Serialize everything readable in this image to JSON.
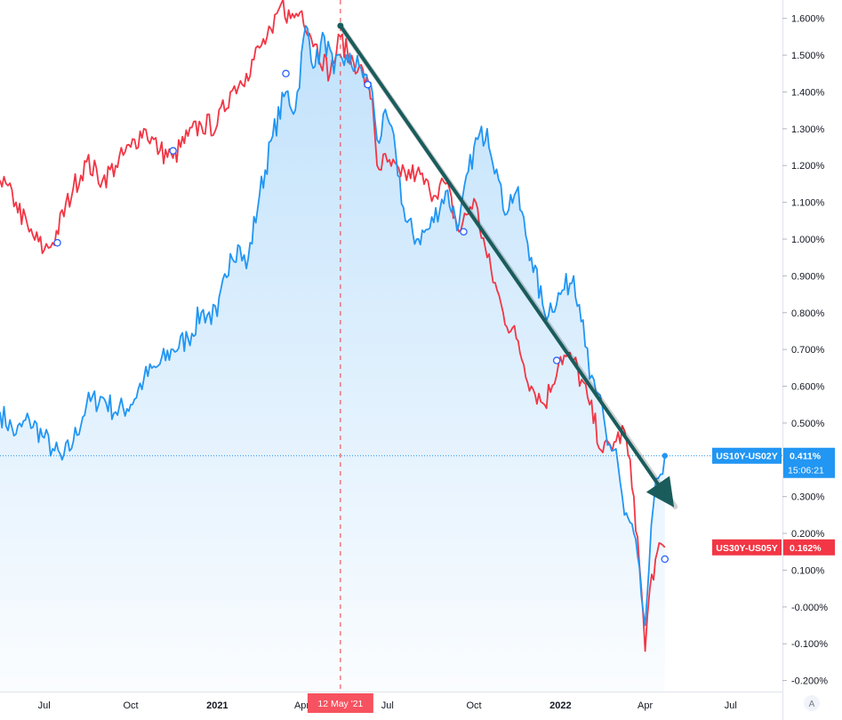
{
  "chart_data": {
    "type": "line",
    "y_axis": {
      "ticks": [
        "1.600%",
        "1.500%",
        "1.400%",
        "1.300%",
        "1.200%",
        "1.100%",
        "1.000%",
        "0.900%",
        "0.800%",
        "0.700%",
        "0.600%",
        "0.500%",
        "0.400%",
        "0.300%",
        "0.200%",
        "0.100%",
        "-0.000%",
        "-0.100%",
        "-0.200%"
      ],
      "tick_values": [
        1.6,
        1.5,
        1.4,
        1.3,
        1.2,
        1.1,
        1.0,
        0.9,
        0.8,
        0.7,
        0.6,
        0.5,
        0.4,
        0.3,
        0.2,
        0.1,
        0.0,
        -0.1,
        -0.2
      ],
      "range": [
        -0.23,
        1.65
      ],
      "position": "right"
    },
    "x_axis": {
      "ticks": [
        {
          "label": "Jul",
          "date": "2020-07-01"
        },
        {
          "label": "Oct",
          "date": "2020-10-01"
        },
        {
          "label": "2021",
          "date": "2021-01-01",
          "bold": true
        },
        {
          "label": "Apr",
          "date": "2021-04-01"
        },
        {
          "label": "Jul",
          "date": "2021-07-01"
        },
        {
          "label": "Oct",
          "date": "2021-10-01"
        },
        {
          "label": "2022",
          "date": "2022-01-01",
          "bold": true
        },
        {
          "label": "Apr",
          "date": "2022-04-01"
        },
        {
          "label": "Jul",
          "date": "2022-07-01"
        }
      ],
      "range": [
        "2020-05-15",
        "2022-08-25"
      ]
    },
    "series": [
      {
        "name": "US10Y-US02Y",
        "color": "#2196f3",
        "last_value_label": "0.411%",
        "points": [
          [
            "2020-05-15",
            0.53
          ],
          [
            "2020-06-01",
            0.47
          ],
          [
            "2020-06-15",
            0.51
          ],
          [
            "2020-07-01",
            0.46
          ],
          [
            "2020-07-10",
            0.43
          ],
          [
            "2020-07-20",
            0.4
          ],
          [
            "2020-08-01",
            0.45
          ],
          [
            "2020-08-15",
            0.55
          ],
          [
            "2020-09-01",
            0.57
          ],
          [
            "2020-09-15",
            0.53
          ],
          [
            "2020-10-01",
            0.55
          ],
          [
            "2020-10-15",
            0.62
          ],
          [
            "2020-11-01",
            0.66
          ],
          [
            "2020-11-15",
            0.7
          ],
          [
            "2020-12-01",
            0.73
          ],
          [
            "2020-12-15",
            0.8
          ],
          [
            "2021-01-01",
            0.79
          ],
          [
            "2021-01-15",
            0.96
          ],
          [
            "2021-01-25",
            0.98
          ],
          [
            "2021-02-01",
            0.92
          ],
          [
            "2021-02-15",
            1.12
          ],
          [
            "2021-03-01",
            1.28
          ],
          [
            "2021-03-15",
            1.4
          ],
          [
            "2021-03-25",
            1.35
          ],
          [
            "2021-04-05",
            1.58
          ],
          [
            "2021-04-15",
            1.47
          ],
          [
            "2021-04-25",
            1.55
          ],
          [
            "2021-05-05",
            1.45
          ],
          [
            "2021-05-12",
            1.5
          ],
          [
            "2021-05-20",
            1.48
          ],
          [
            "2021-06-01",
            1.47
          ],
          [
            "2021-06-15",
            1.4
          ],
          [
            "2021-06-20",
            1.27
          ],
          [
            "2021-07-01",
            1.33
          ],
          [
            "2021-07-10",
            1.23
          ],
          [
            "2021-07-20",
            1.05
          ],
          [
            "2021-08-01",
            1.0
          ],
          [
            "2021-08-15",
            1.03
          ],
          [
            "2021-09-01",
            1.13
          ],
          [
            "2021-09-15",
            1.04
          ],
          [
            "2021-10-01",
            1.25
          ],
          [
            "2021-10-15",
            1.3
          ],
          [
            "2021-10-25",
            1.19
          ],
          [
            "2021-11-01",
            1.08
          ],
          [
            "2021-11-15",
            1.13
          ],
          [
            "2021-12-01",
            0.95
          ],
          [
            "2021-12-15",
            0.8
          ],
          [
            "2022-01-01",
            0.85
          ],
          [
            "2022-01-15",
            0.9
          ],
          [
            "2022-01-25",
            0.78
          ],
          [
            "2022-02-01",
            0.62
          ],
          [
            "2022-02-10",
            0.58
          ],
          [
            "2022-02-20",
            0.44
          ],
          [
            "2022-03-01",
            0.43
          ],
          [
            "2022-03-10",
            0.25
          ],
          [
            "2022-03-20",
            0.2
          ],
          [
            "2022-03-28",
            0.03
          ],
          [
            "2022-04-01",
            -0.05
          ],
          [
            "2022-04-05",
            0.1
          ],
          [
            "2022-04-10",
            0.28
          ],
          [
            "2022-04-15",
            0.35
          ],
          [
            "2022-04-22",
            0.411
          ]
        ]
      },
      {
        "name": "US30Y-US05Y",
        "color": "#f23645",
        "last_value_label": "0.162%",
        "points": [
          [
            "2020-05-15",
            1.16
          ],
          [
            "2020-06-01",
            1.1
          ],
          [
            "2020-06-15",
            1.02
          ],
          [
            "2020-07-01",
            0.97
          ],
          [
            "2020-07-10",
            0.99
          ],
          [
            "2020-08-01",
            1.14
          ],
          [
            "2020-08-15",
            1.21
          ],
          [
            "2020-09-01",
            1.16
          ],
          [
            "2020-09-15",
            1.2
          ],
          [
            "2020-10-01",
            1.25
          ],
          [
            "2020-10-15",
            1.3
          ],
          [
            "2020-11-01",
            1.24
          ],
          [
            "2020-11-15",
            1.22
          ],
          [
            "2020-12-01",
            1.28
          ],
          [
            "2020-12-15",
            1.31
          ],
          [
            "2021-01-01",
            1.31
          ],
          [
            "2021-01-15",
            1.4
          ],
          [
            "2021-02-01",
            1.45
          ],
          [
            "2021-02-15",
            1.52
          ],
          [
            "2021-03-01",
            1.56
          ],
          [
            "2021-03-10",
            1.64
          ],
          [
            "2021-03-20",
            1.6
          ],
          [
            "2021-04-01",
            1.62
          ],
          [
            "2021-04-15",
            1.53
          ],
          [
            "2021-05-01",
            1.45
          ],
          [
            "2021-05-12",
            1.55
          ],
          [
            "2021-05-20",
            1.5
          ],
          [
            "2021-06-01",
            1.47
          ],
          [
            "2021-06-15",
            1.38
          ],
          [
            "2021-06-20",
            1.2
          ],
          [
            "2021-07-01",
            1.21
          ],
          [
            "2021-07-15",
            1.17
          ],
          [
            "2021-08-01",
            1.18
          ],
          [
            "2021-08-15",
            1.13
          ],
          [
            "2021-09-01",
            1.15
          ],
          [
            "2021-09-15",
            1.02
          ],
          [
            "2021-10-01",
            1.11
          ],
          [
            "2021-10-15",
            0.95
          ],
          [
            "2021-11-01",
            0.8
          ],
          [
            "2021-11-15",
            0.73
          ],
          [
            "2021-12-01",
            0.6
          ],
          [
            "2021-12-15",
            0.55
          ],
          [
            "2022-01-01",
            0.68
          ],
          [
            "2022-01-15",
            0.67
          ],
          [
            "2022-02-01",
            0.55
          ],
          [
            "2022-02-15",
            0.42
          ],
          [
            "2022-03-01",
            0.45
          ],
          [
            "2022-03-10",
            0.48
          ],
          [
            "2022-03-20",
            0.3
          ],
          [
            "2022-03-28",
            0.05
          ],
          [
            "2022-04-01",
            -0.12
          ],
          [
            "2022-04-06",
            0.05
          ],
          [
            "2022-04-12",
            0.13
          ],
          [
            "2022-04-22",
            0.162
          ]
        ]
      }
    ],
    "markers": [
      {
        "series": "US30Y-US05Y",
        "date": "2020-07-15",
        "value": 0.99
      },
      {
        "series": "US30Y-US05Y",
        "date": "2020-11-15",
        "value": 1.24
      },
      {
        "series": "US10Y-US02Y",
        "date": "2021-03-15",
        "value": 1.45
      },
      {
        "series": "US10Y-US02Y",
        "date": "2021-06-10",
        "value": 1.42
      },
      {
        "series": "US30Y-US05Y",
        "date": "2021-09-20",
        "value": 1.02
      },
      {
        "series": "US30Y-US05Y",
        "date": "2021-12-28",
        "value": 0.67
      },
      {
        "series": "US30Y-US05Y",
        "date": "2022-04-22",
        "value": 0.13
      }
    ],
    "annotations": {
      "vertical_line_date": "2021-05-12",
      "vertical_line_label": "12 May '21",
      "trend_arrow": {
        "from": [
          "2021-05-12",
          1.58
        ],
        "to": [
          "2022-05-01",
          0.28
        ],
        "color": "#1a5c5c"
      },
      "last_time_label": "15:06:21",
      "last_value_dotted_line": 0.411
    },
    "grid": false,
    "auto_scale_label": "A"
  }
}
